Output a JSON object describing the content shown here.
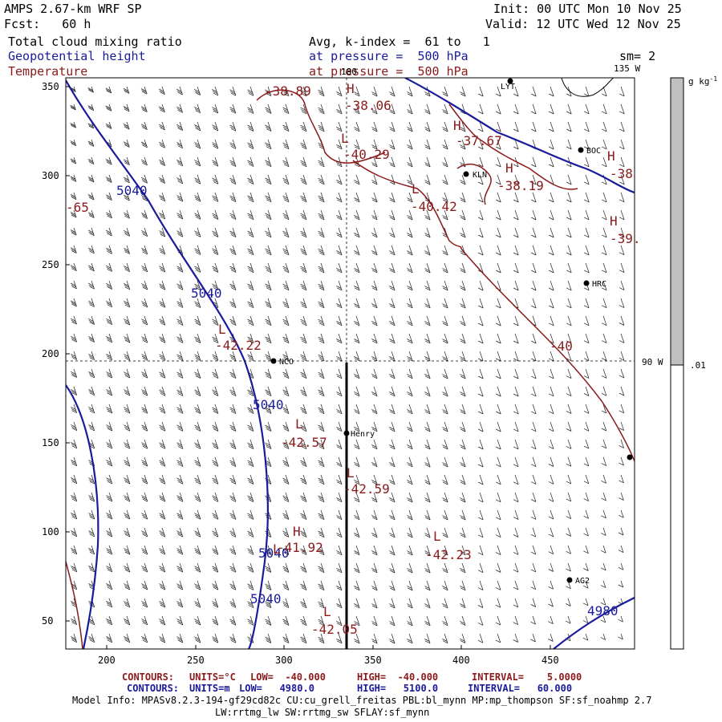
{
  "header": {
    "model": "AMPS 2.67-km WRF SP",
    "init": "Init: 00 UTC Mon 10 Nov 25",
    "fcst": "Fcst:   60 h",
    "valid": "Valid: 12 UTC Wed 12 Nov 25",
    "field1": "Total cloud mixing ratio",
    "avg": "Avg, k-index =  61 to   1",
    "field2": "Geopotential height",
    "pres1": "at pressure =  500 hPa",
    "sm": "sm= 2",
    "field3": "Temperature",
    "pres2": "at pressure =  500 hPa"
  },
  "map": {
    "lon_labels": {
      "top": "180",
      "right_top": "135 W",
      "right_mid": "90 W"
    },
    "x_ticks": [
      "200",
      "250",
      "300",
      "350",
      "400",
      "450"
    ],
    "y_ticks": [
      "350",
      "300",
      "250",
      "200",
      "150",
      "100",
      "50"
    ],
    "stations": [
      {
        "name": "NCO"
      },
      {
        "name": "Henry"
      },
      {
        "name": "KLN"
      },
      {
        "name": "BOC"
      },
      {
        "name": "HRC"
      },
      {
        "name": "AG2"
      },
      {
        "name": "LYT"
      }
    ],
    "height_labels": [
      "5040",
      "5040",
      "5040",
      "5040",
      "5040",
      "4980"
    ],
    "temp_labels": [
      "-38.89",
      "-38.06",
      "-40.29",
      "-37.67",
      "-38.19",
      "-40.42",
      "-38",
      "-39.",
      "-42.22",
      "-40",
      "-42.57",
      "-42.59",
      "-41.92",
      "-42.23",
      "-42.05",
      "-65"
    ],
    "hl_markers": [
      "H",
      "H",
      "L",
      "H",
      "H",
      "L",
      "H",
      "L",
      "L",
      "L",
      "L",
      "H",
      "L",
      "L"
    ]
  },
  "colorbar": {
    "unit": "g kg",
    "unit_sup": "-1",
    "label": ".01"
  },
  "footer": {
    "temp_row": {
      "contours": "CONTOURS:",
      "units": "UNITS=°C",
      "low": "LOW=  -40.000",
      "high": "HIGH=  -40.000",
      "interval": "INTERVAL=    5.0000"
    },
    "hgt_row": {
      "contours": "CONTOURS:",
      "units": "UNITS=m",
      "low": "LOW=   4980.0",
      "high": "HIGH=   5100.0",
      "interval": "INTERVAL=   60.000"
    },
    "info1": "Model Info: MPASv8.2.3-194-gf29cd82c CU:cu_grell_freitas PBL:bl_mynn MP:mp_thompson SF:sf_noahmp 2.7",
    "info2": "LW:rrtmg_lw SW:rrtmg_sw SFLAY:sf_mynn"
  },
  "colors": {
    "height": "#1a1a9c",
    "temperature": "#8b1a1a",
    "colorbar_fill": "#c0c0c0"
  }
}
